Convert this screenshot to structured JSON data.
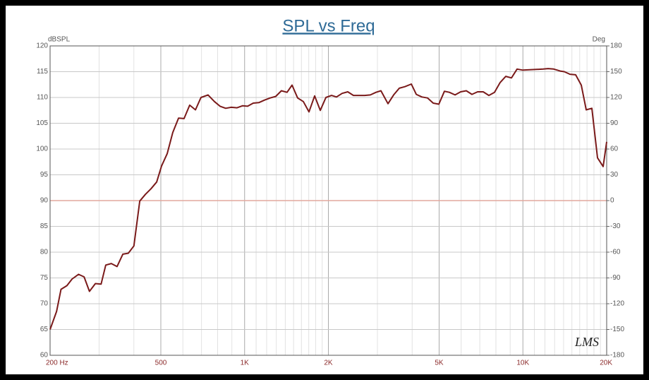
{
  "chart_data": {
    "type": "line",
    "title": "SPL vs Freq",
    "y_label": "dBSPL",
    "y2_label": "Deg",
    "watermark": "LMS",
    "xscale": "log",
    "xlim": [
      200,
      20000
    ],
    "xticks": [
      {
        "value": 200,
        "label": "200 Hz"
      },
      500,
      {
        "value": 1000,
        "label": "1K"
      },
      {
        "value": 2000,
        "label": "2K"
      },
      {
        "value": 5000,
        "label": "5K"
      },
      {
        "value": 10000,
        "label": "10K"
      },
      {
        "value": 20000,
        "label": "20K"
      }
    ],
    "xminor_ticks": [
      300,
      400,
      600,
      700,
      800,
      900,
      3000,
      4000,
      6000,
      7000,
      8000,
      9000,
      1100,
      1200,
      1300,
      1400,
      1500,
      1600,
      1700,
      1800,
      1900,
      11000,
      12000,
      13000,
      14000,
      15000,
      16000,
      17000,
      18000,
      19000
    ],
    "ylim": [
      60,
      120
    ],
    "yticks": [
      60,
      65,
      70,
      75,
      80,
      85,
      90,
      95,
      100,
      105,
      110,
      115,
      120
    ],
    "y2lim": [
      -180,
      180
    ],
    "y2ticks": [
      -180,
      -150,
      -120,
      -90,
      -60,
      -30,
      0,
      30,
      60,
      90,
      120,
      150,
      180
    ],
    "grid": true,
    "hlines": [
      {
        "axis": "y2",
        "value": 0,
        "color": "#e2a89e"
      }
    ],
    "x": [
      200,
      211,
      219,
      230,
      240,
      253,
      265,
      277,
      291,
      305,
      317,
      332,
      348,
      365,
      382,
      400,
      420,
      440,
      461,
      483,
      503,
      527,
      552,
      579,
      606,
      635,
      666,
      697,
      739,
      779,
      816,
      855,
      896,
      939,
      984,
      1025,
      1074,
      1125,
      1179,
      1235,
      1294,
      1356,
      1421,
      1481,
      1551,
      1626,
      1703,
      1785,
      1870,
      1959,
      2053,
      2139,
      2241,
      2348,
      2460,
      2578,
      2701,
      2830,
      2966,
      3090,
      3275,
      3432,
      3596,
      3768,
      3973,
      4138,
      4336,
      4543,
      4760,
      4988,
      5225,
      5443,
      5704,
      5976,
      6262,
      6561,
      6875,
      7203,
      7547,
      7908,
      8286,
      8682,
      9096,
      9531,
      9987,
      11829,
      12324,
      12909,
      13683,
      14087,
      14760,
      15466,
      16206,
      16882,
      17690,
      18537,
      19423,
      20000
    ],
    "series": [
      {
        "name": "SPL",
        "color": "#7a1a1a",
        "values": [
          65,
          68.5,
          72.8,
          73.5,
          74.8,
          75.7,
          75.2,
          72.4,
          73.9,
          73.8,
          77.5,
          77.8,
          77.2,
          79.6,
          79.8,
          81.2,
          89.9,
          91.2,
          92.3,
          93.6,
          96.7,
          99.1,
          103.2,
          106.0,
          105.9,
          108.5,
          107.6,
          110.0,
          110.5,
          109.2,
          108.3,
          107.9,
          108.1,
          108.0,
          108.4,
          108.3,
          108.9,
          109.0,
          109.5,
          109.9,
          110.2,
          111.3,
          111.0,
          112.4,
          109.9,
          109.2,
          107.2,
          110.3,
          107.5,
          110.0,
          110.4,
          110.1,
          110.8,
          111.1,
          110.4,
          110.4,
          110.4,
          110.5,
          111.0,
          111.3,
          108.8,
          110.5,
          111.8,
          112.1,
          112.6,
          110.6,
          110.1,
          109.9,
          108.9,
          108.7,
          111.2,
          111.0,
          110.5,
          111.1,
          111.3,
          110.6,
          111.1,
          111.1,
          110.4,
          111.0,
          112.9,
          114.1,
          113.8,
          115.5,
          115.3,
          115.5,
          115.6,
          115.5,
          115.1,
          115.0,
          114.5,
          114.4,
          112.4,
          107.6,
          107.9,
          98.3,
          96.6,
          101.4
        ]
      }
    ]
  }
}
